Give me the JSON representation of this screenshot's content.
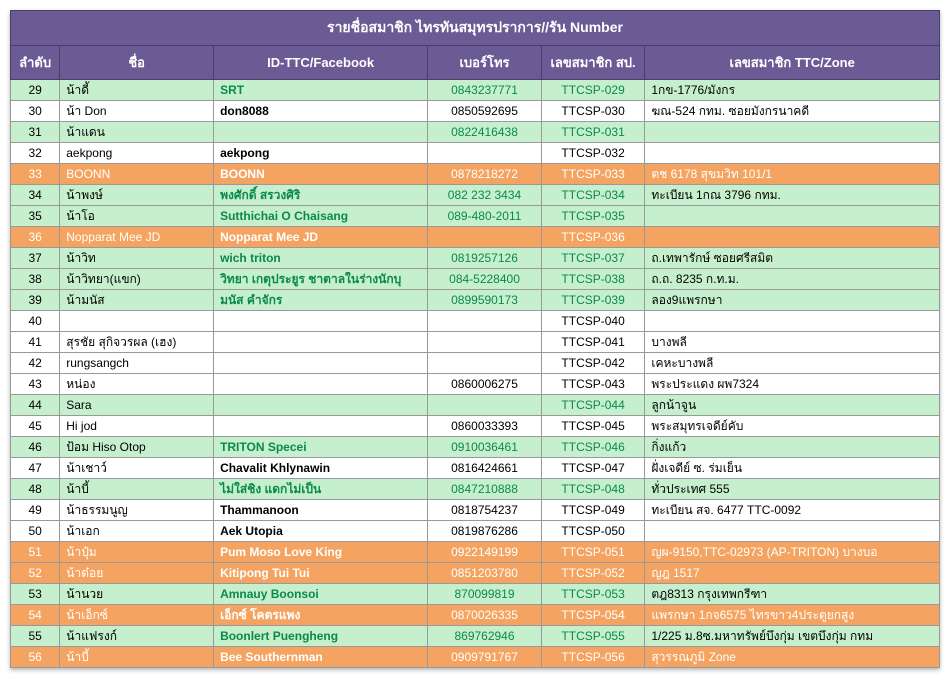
{
  "title": "รายชื่อสมาชิก ไทรทันสมุทรปราการ//รัน Number",
  "columns": [
    "ลำดับ",
    "ชื่อ",
    "ID-TTC/Facebook",
    "เบอร์โทร",
    "เลขสมาชิก สป.",
    "เลขสมาชิก TTC/Zone"
  ],
  "rows": [
    {
      "style": "green",
      "seq": "29",
      "name": "น้าดี้",
      "id": "SRT",
      "phone": "0843237771",
      "code": "TTCSP-029",
      "zone": "1กข-1776/มังกร"
    },
    {
      "style": "white",
      "seq": "30",
      "name": "น้า Don",
      "id": "don8088",
      "phone": "0850592695",
      "code": "TTCSP-030",
      "zone": "ฆณ-524 กทม. ซอยมังกรนาคดี"
    },
    {
      "style": "green",
      "seq": "31",
      "name": "น้าแดน",
      "id": "",
      "phone": "0822416438",
      "code": "TTCSP-031",
      "zone": ""
    },
    {
      "style": "white",
      "seq": "32",
      "name": "aekpong",
      "id": "aekpong",
      "phone": "",
      "code": "TTCSP-032",
      "zone": ""
    },
    {
      "style": "orange",
      "seq": "33",
      "name": "BOONN",
      "id": "BOONN",
      "phone": "0878218272",
      "code": "TTCSP-033",
      "zone": "ตช 6178 สุขมวิท 101/1"
    },
    {
      "style": "green",
      "seq": "34",
      "name": "น้าพงษ์",
      "id": "พงศักดิ์ สรวงศิริ",
      "phone": "082 232 3434",
      "code": "TTCSP-034",
      "zone": "ทะเบียน 1กณ 3796 กทม."
    },
    {
      "style": "green",
      "seq": "35",
      "name": "น้าโอ",
      "id": "Sutthichai O Chaisang",
      "phone": "089-480-2011",
      "code": "TTCSP-035",
      "zone": ""
    },
    {
      "style": "orange",
      "seq": "36",
      "name": "Nopparat Mee JD",
      "id": "Nopparat Mee JD",
      "phone": "",
      "code": "TTCSP-036",
      "zone": ""
    },
    {
      "style": "green",
      "seq": "37",
      "name": "น้าวิท",
      "id": "wich triton",
      "phone": "0819257126",
      "code": "TTCSP-037",
      "zone": "ถ.เทพารักษ์ ซอยศรีสมิต"
    },
    {
      "style": "green",
      "seq": "38",
      "name": "น้าวิทยา(แขก)",
      "id": "วิทยา เกตุประยูร ชาตาลในร่างนักบุ",
      "phone": "084-5228400",
      "code": "TTCSP-038",
      "zone": "ถ.ถ. 8235 ก.ท.ม."
    },
    {
      "style": "green",
      "seq": "39",
      "name": "น้ามนัส",
      "id": "มนัส คำจักร",
      "phone": "0899590173",
      "code": "TTCSP-039",
      "zone": "ลอง9แพรกษา"
    },
    {
      "style": "white",
      "seq": "40",
      "name": "",
      "id": "",
      "phone": "",
      "code": "TTCSP-040",
      "zone": ""
    },
    {
      "style": "white",
      "seq": "41",
      "name": "สุรชัย สุกิจวรผล (เฮง)",
      "id": "",
      "phone": "",
      "code": "TTCSP-041",
      "zone": "บางพลี"
    },
    {
      "style": "white",
      "seq": "42",
      "name": "rungsangch",
      "id": "",
      "phone": "",
      "code": "TTCSP-042",
      "zone": "เคหะบางพลี"
    },
    {
      "style": "white",
      "seq": "43",
      "name": "หน่อง",
      "id": "",
      "phone": "0860006275",
      "code": "TTCSP-043",
      "zone": "พระประแดง ผพ7324"
    },
    {
      "style": "green",
      "seq": "44",
      "name": "Sara",
      "id": "",
      "phone": "",
      "code": "TTCSP-044",
      "zone": "ลูกน้าจูน"
    },
    {
      "style": "white",
      "seq": "45",
      "name": "Hi jod",
      "id": "",
      "phone": "0860033393",
      "code": "TTCSP-045",
      "zone": "พระสมุทรเจดีย์คับ"
    },
    {
      "style": "green",
      "seq": "46",
      "name": "ป้อม Hiso Otop",
      "id": "TRITON Specei",
      "phone": "0910036461",
      "code": "TTCSP-046",
      "zone": "กิ่งแก้ว"
    },
    {
      "style": "white",
      "seq": "47",
      "name": "น้าเชาว์",
      "id": "Chavalit Khlynawin",
      "phone": "0816424661",
      "code": "TTCSP-047",
      "zone": "ฝั่งเจดีย์ ซ. ร่มเย็น"
    },
    {
      "style": "green",
      "seq": "48",
      "name": "น้าบี้",
      "id": "ไม่ใส่ชิง แดกไม่เป็น",
      "phone": "0847210888",
      "code": "TTCSP-048",
      "zone": "ทั่วประเทศ 555"
    },
    {
      "style": "white",
      "seq": "49",
      "name": "น้าธรรมนูญ",
      "id": "Thammanoon",
      "phone": "0818754237",
      "code": "TTCSP-049",
      "zone": "ทะเบียน สจ. 6477 TTC-0092"
    },
    {
      "style": "white",
      "seq": "50",
      "name": "น้าเอก",
      "id": "Aek Utopia",
      "phone": "0819876286",
      "code": "TTCSP-050",
      "zone": ""
    },
    {
      "style": "orange",
      "seq": "51",
      "name": "น้าปุ๋ม",
      "id": "Pum Moso Love King",
      "phone": "0922149199",
      "code": "TTCSP-051",
      "zone": "ญผ-9150,TTC-02973 (AP-TRITON) บางบอ"
    },
    {
      "style": "orange",
      "seq": "52",
      "name": "น้าด๋อย",
      "id": "Kitipong Tui Tui",
      "phone": "0851203780",
      "code": "TTCSP-052",
      "zone": "ญฎ 1517"
    },
    {
      "style": "green",
      "seq": "53",
      "name": "น้านวย",
      "id": "Amnauy Boonsoi",
      "phone": "870099819",
      "code": "TTCSP-053",
      "zone": "ตฎ8313 กรุงเทพกรีฑา"
    },
    {
      "style": "orange",
      "seq": "54",
      "name": "น้าเอ็กซ์",
      "id": "เอ็กซ์ โคตรแพง",
      "phone": "0870026335",
      "code": "TTCSP-054",
      "zone": "แพรกษา 1กจ6575 ไทรขาว4ประตูยกสูง"
    },
    {
      "style": "green",
      "seq": "55",
      "name": "น้าแฟรงก์",
      "id": "Boonlert Puengheng",
      "phone": "869762946",
      "code": "TTCSP-055",
      "zone": "1/225 ม.8ซ.มหาทรัพย์บึงกุ่ม เขตบึงกุ่ม กทม"
    },
    {
      "style": "orange",
      "seq": "56",
      "name": "น้าบี้",
      "id": "Bee Southernman",
      "phone": "0909791767",
      "code": "TTCSP-056",
      "zone": "สุวรรณภูมิ Zone"
    }
  ]
}
